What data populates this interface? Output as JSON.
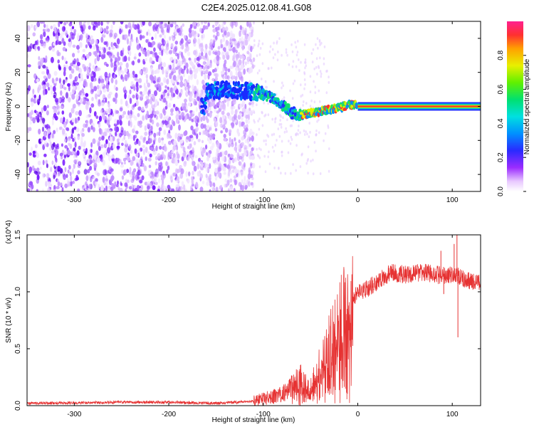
{
  "title": "C2E4.2025.012.08.41.G08",
  "chart_data": [
    {
      "type": "heatmap",
      "xlabel": "Height of straight line (km)",
      "ylabel": "Frequency (Hz)",
      "xlim": [
        -350,
        130
      ],
      "ylim": [
        -50,
        50
      ],
      "xticks": [
        -300,
        -200,
        -100,
        0,
        100
      ],
      "yticks": [
        -40,
        -20,
        0,
        20,
        40
      ],
      "ridge": [
        {
          "x": -160,
          "y": 9
        },
        {
          "x": -140,
          "y": 10
        },
        {
          "x": -120,
          "y": 9
        },
        {
          "x": -105,
          "y": 8
        },
        {
          "x": -95,
          "y": 6
        },
        {
          "x": -85,
          "y": 3
        },
        {
          "x": -78,
          "y": 0
        },
        {
          "x": -70,
          "y": -4
        },
        {
          "x": -60,
          "y": -5
        },
        {
          "x": -50,
          "y": -4
        },
        {
          "x": -40,
          "y": -3
        },
        {
          "x": -30,
          "y": -2
        },
        {
          "x": -20,
          "y": -1
        },
        {
          "x": -10,
          "y": 1
        },
        {
          "x": 0,
          "y": 1
        },
        {
          "x": 130,
          "y": 0
        }
      ],
      "colorbar": {
        "label": "Normalized spectral amplitude",
        "ticks": [
          "0.0",
          "0.2",
          "0.4",
          "0.6",
          "0.8"
        ],
        "tick_values": [
          0.0,
          0.2,
          0.4,
          0.6,
          0.8
        ],
        "range": [
          0,
          1
        ]
      }
    },
    {
      "type": "line",
      "xlabel": "Height of straight line (km)",
      "ylabel": "SNR (10 * v/v)",
      "scale_note": "(x10^4)",
      "xlim": [
        -350,
        130
      ],
      "ylim": [
        0,
        1.5
      ],
      "xticks": [
        -300,
        -200,
        -100,
        0,
        100
      ],
      "yticks": [
        "0.0",
        "0.5",
        "1.0",
        "1.5"
      ],
      "ytick_values": [
        0.0,
        0.5,
        1.0,
        1.5
      ],
      "series": [
        {
          "name": "SNR",
          "color": "#e63232",
          "envelope": [
            [
              -350,
              0.02
            ],
            [
              -250,
              0.03
            ],
            [
              -200,
              0.03
            ],
            [
              -150,
              0.02
            ],
            [
              -110,
              0.04
            ],
            [
              -80,
              0.1
            ],
            [
              -60,
              0.25
            ],
            [
              -50,
              0.15
            ],
            [
              -40,
              0.35
            ],
            [
              -30,
              0.55
            ],
            [
              -20,
              0.75
            ],
            [
              -10,
              0.9
            ],
            [
              0,
              0.98
            ],
            [
              10,
              1.03
            ],
            [
              20,
              1.08
            ],
            [
              35,
              1.17
            ],
            [
              50,
              1.15
            ],
            [
              70,
              1.17
            ],
            [
              90,
              1.14
            ],
            [
              100,
              1.15
            ],
            [
              110,
              1.12
            ],
            [
              120,
              1.09
            ],
            [
              130,
              1.08
            ]
          ],
          "spikes": [
            {
              "x": 88,
              "y": 1.36
            },
            {
              "x": 102,
              "y": 1.42
            },
            {
              "x": 105,
              "y": 1.5
            },
            {
              "x": 106,
              "y": 0.6
            },
            {
              "x": 91,
              "y": 0.98
            }
          ]
        }
      ]
    }
  ]
}
